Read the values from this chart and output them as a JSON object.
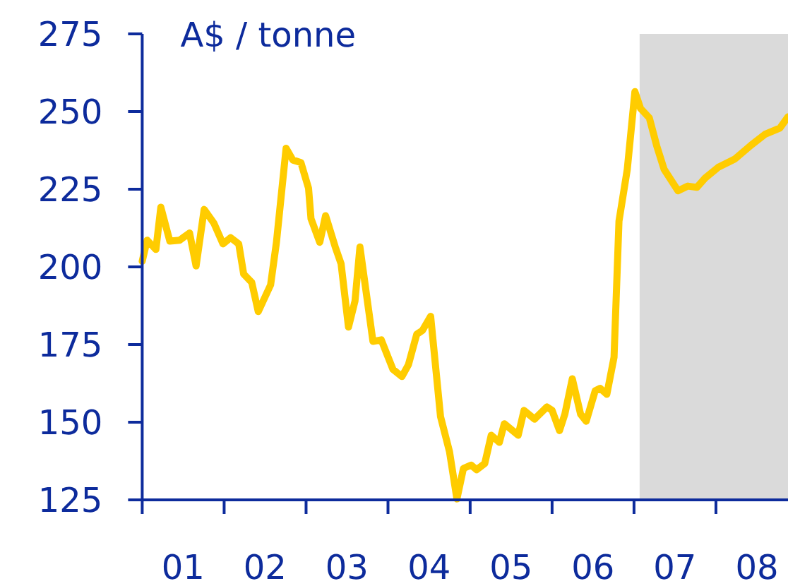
{
  "chart_data": {
    "type": "line",
    "ylabel": "A$ / tonne",
    "x": [
      "2001-01-01",
      "2001-01-23",
      "2001-03-03",
      "2001-03-25",
      "2001-05-04",
      "2001-06-17",
      "2001-07-31",
      "2001-08-29",
      "2001-10-04",
      "2001-11-17",
      "2001-12-27",
      "2002-01-30",
      "2002-03-07",
      "2002-03-29",
      "2002-05-04",
      "2002-06-02",
      "2002-07-27",
      "2002-08-22",
      "2002-10-04",
      "2002-11-03",
      "2002-12-09",
      "2003-01-12",
      "2003-01-23",
      "2003-03-03",
      "2003-03-29",
      "2003-05-11",
      "2003-06-06",
      "2003-07-09",
      "2003-08-07",
      "2003-08-29",
      "2003-10-26",
      "2003-12-02",
      "2004-01-23",
      "2004-03-03",
      "2004-04-01",
      "2004-05-08",
      "2004-06-02",
      "2004-07-09",
      "2004-08-22",
      "2004-10-01",
      "2004-11-03",
      "2004-12-02",
      "2005-01-05",
      "2005-01-30",
      "2005-03-07",
      "2005-04-05",
      "2005-05-11",
      "2005-06-02",
      "2005-08-03",
      "2005-08-29",
      "2005-10-15",
      "2005-12-09",
      "2006-01-01",
      "2006-02-03",
      "2006-02-27",
      "2006-04-01",
      "2006-05-08",
      "2006-06-02",
      "2006-07-12",
      "2006-08-03",
      "2006-09-02",
      "2006-10-04",
      "2006-10-26",
      "2006-12-02",
      "2007-01-05",
      "2007-01-30",
      "2007-03-10",
      "2007-04-12",
      "2007-05-15",
      "2007-07-16",
      "2007-08-29",
      "2007-10-08",
      "2007-11-14",
      "2008-01-12",
      "2008-03-25",
      "2008-06-06",
      "2008-08-07",
      "2008-10-12",
      "2008-11-17"
    ],
    "series": [
      {
        "color": "#ffcc00",
        "values": [
          201.8,
          208.6,
          205.6,
          219.2,
          208.3,
          208.6,
          210.9,
          200.3,
          218.5,
          214,
          207.4,
          209.4,
          207.4,
          197.7,
          195,
          185.6,
          194.2,
          207.9,
          238.2,
          234.4,
          233.6,
          225.3,
          215.5,
          207.9,
          216.5,
          206.4,
          201,
          180.6,
          189,
          206.4,
          176,
          176.5,
          167,
          164.7,
          168.5,
          178.3,
          179.5,
          184.1,
          151.8,
          140.5,
          125.3,
          135.1,
          136.2,
          134.7,
          136.7,
          145.8,
          143.5,
          149.5,
          145.8,
          153.8,
          151,
          154.9,
          153.8,
          147.3,
          152.6,
          164,
          152.6,
          150.3,
          160.1,
          160.9,
          159,
          170.9,
          214.7,
          231.4,
          256.4,
          251,
          248,
          239,
          231.4,
          224.5,
          226,
          225.6,
          228.6,
          232.1,
          234.7,
          239.2,
          242.7,
          244.7,
          248.3
        ]
      }
    ],
    "xlim": [
      "2001-01-01",
      "2008-11-17"
    ],
    "xticks": [
      {
        "value": "2001-01-01",
        "label": null
      },
      {
        "value": "2001-07-02",
        "label": "01"
      },
      {
        "value": "2002-01-01",
        "label": null
      },
      {
        "value": "2002-07-02",
        "label": "02"
      },
      {
        "value": "2003-01-01",
        "label": null
      },
      {
        "value": "2003-07-02",
        "label": "03"
      },
      {
        "value": "2004-01-01",
        "label": null
      },
      {
        "value": "2004-07-02",
        "label": "04"
      },
      {
        "value": "2005-01-01",
        "label": null
      },
      {
        "value": "2005-07-02",
        "label": "05"
      },
      {
        "value": "2006-01-01",
        "label": null
      },
      {
        "value": "2006-07-02",
        "label": "06"
      },
      {
        "value": "2007-01-01",
        "label": null
      },
      {
        "value": "2007-07-02",
        "label": "07"
      },
      {
        "value": "2008-01-01",
        "label": null
      },
      {
        "value": "2008-07-02",
        "label": "08"
      }
    ],
    "ylim": [
      125,
      275
    ],
    "yticks": [
      125,
      150,
      175,
      200,
      225,
      250,
      275
    ],
    "bands": [
      {
        "axis": "x",
        "from": "2007-01-26",
        "to": "2008-11-17",
        "color": "#dadada"
      }
    ],
    "grid": false
  }
}
